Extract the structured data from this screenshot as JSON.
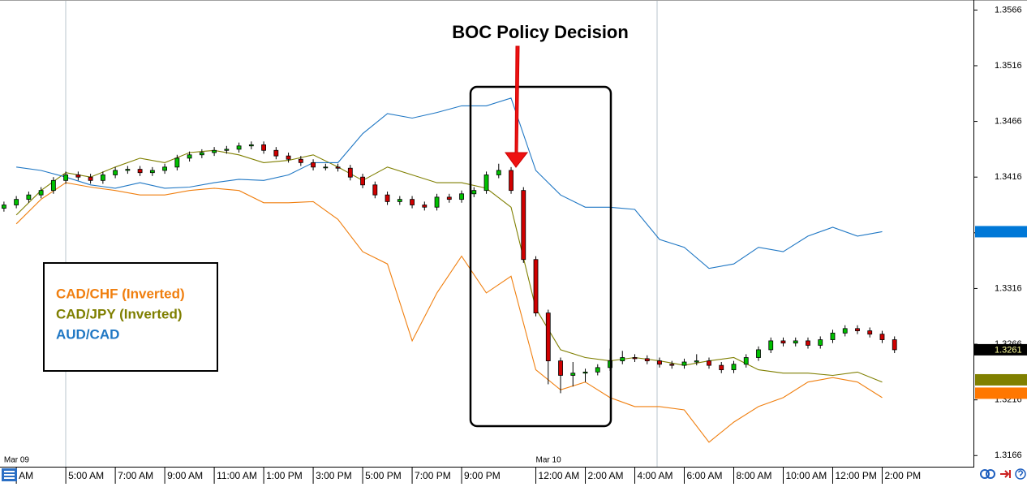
{
  "chart_data": {
    "type": "candlestick",
    "annotation": "BOC Policy Decision",
    "legend": "left",
    "up_color": "#00c000",
    "down_color": "#d00000",
    "x": [
      2.5,
      3,
      3.5,
      4,
      4.5,
      5,
      5.5,
      6,
      6.5,
      7,
      7.5,
      8,
      8.5,
      9,
      9.5,
      10,
      10.5,
      11,
      11.5,
      12,
      12.5,
      13,
      13.5,
      14,
      14.5,
      15,
      15.5,
      16,
      16.5,
      17,
      17.5,
      18,
      18.5,
      19,
      19.5,
      20,
      20.5,
      21,
      21.5,
      22,
      22.5,
      23,
      23.5,
      24,
      24.5,
      25,
      25.5,
      26,
      26.5,
      27,
      27.5,
      28,
      28.5,
      29,
      29.5,
      30,
      30.5,
      31,
      31.5,
      32,
      32.5,
      33,
      33.5,
      34,
      34.5,
      35,
      35.5,
      36,
      36.5,
      37,
      37.5,
      38,
      38.5
    ],
    "open": [
      1.3388,
      1.3391,
      1.3396,
      1.34,
      1.3404,
      1.3413,
      1.3418,
      1.3416,
      1.3413,
      1.3418,
      1.3422,
      1.3423,
      1.342,
      1.3422,
      1.3425,
      1.3433,
      1.3436,
      1.3438,
      1.344,
      1.3441,
      1.3444,
      1.3445,
      1.344,
      1.3435,
      1.3432,
      1.3429,
      1.3425,
      1.3425,
      1.3424,
      1.3416,
      1.3409,
      1.34,
      1.3394,
      1.3396,
      1.3391,
      1.3389,
      1.3398,
      1.3396,
      1.3401,
      1.3404,
      1.3418,
      1.3422,
      1.3404,
      1.3342,
      1.3294,
      1.3251,
      1.3238,
      1.324,
      1.3241,
      1.3245,
      1.3251,
      1.3254,
      1.3253,
      1.3251,
      1.3248,
      1.3247,
      1.325,
      1.3251,
      1.3247,
      1.3243,
      1.3248,
      1.3254,
      1.3261,
      1.3269,
      1.3267,
      1.3269,
      1.3265,
      1.327,
      1.3276,
      1.328,
      1.3278,
      1.3275,
      1.327
    ],
    "high": [
      1.3394,
      1.3399,
      1.3403,
      1.3407,
      1.3416,
      1.3421,
      1.3421,
      1.3419,
      1.3421,
      1.3425,
      1.3426,
      1.3426,
      1.3425,
      1.3428,
      1.3436,
      1.3439,
      1.3441,
      1.3443,
      1.3444,
      1.3447,
      1.3448,
      1.3448,
      1.3443,
      1.3438,
      1.3435,
      1.3432,
      1.3428,
      1.3428,
      1.3427,
      1.3419,
      1.3412,
      1.3403,
      1.3399,
      1.3399,
      1.3394,
      1.3401,
      1.3401,
      1.3404,
      1.3407,
      1.3421,
      1.3428,
      1.3425,
      1.3407,
      1.3345,
      1.3297,
      1.3254,
      1.325,
      1.3244,
      1.3248,
      1.3262,
      1.326,
      1.3257,
      1.3256,
      1.3254,
      1.3251,
      1.3253,
      1.3257,
      1.3254,
      1.325,
      1.3251,
      1.3257,
      1.3264,
      1.3272,
      1.3272,
      1.3272,
      1.3272,
      1.3273,
      1.3279,
      1.3283,
      1.3283,
      1.3281,
      1.3278,
      1.3273
    ],
    "low": [
      1.3385,
      1.3388,
      1.3393,
      1.3397,
      1.3401,
      1.341,
      1.3413,
      1.341,
      1.341,
      1.3415,
      1.3419,
      1.3417,
      1.3417,
      1.3419,
      1.3422,
      1.343,
      1.3433,
      1.3435,
      1.3437,
      1.3438,
      1.3441,
      1.3437,
      1.3432,
      1.3429,
      1.3426,
      1.3422,
      1.3422,
      1.3421,
      1.3413,
      1.3406,
      1.3397,
      1.3391,
      1.3391,
      1.3388,
      1.3386,
      1.3386,
      1.3393,
      1.3393,
      1.3398,
      1.3401,
      1.3415,
      1.3401,
      1.3339,
      1.3291,
      1.323,
      1.3222,
      1.3228,
      1.3232,
      1.3238,
      1.3242,
      1.3248,
      1.325,
      1.3248,
      1.3245,
      1.3244,
      1.3244,
      1.3247,
      1.3244,
      1.324,
      1.324,
      1.3245,
      1.3251,
      1.3258,
      1.3264,
      1.3264,
      1.3262,
      1.3262,
      1.3267,
      1.3273,
      1.3275,
      1.3272,
      1.3267,
      1.3258
    ],
    "close": [
      1.3391,
      1.3396,
      1.34,
      1.3404,
      1.3413,
      1.3418,
      1.3416,
      1.3413,
      1.3418,
      1.3422,
      1.3423,
      1.342,
      1.3422,
      1.3425,
      1.3433,
      1.3436,
      1.3438,
      1.344,
      1.3441,
      1.3444,
      1.3445,
      1.344,
      1.3435,
      1.3432,
      1.3429,
      1.3425,
      1.3425,
      1.3424,
      1.3416,
      1.3409,
      1.34,
      1.3394,
      1.3396,
      1.3391,
      1.3389,
      1.3398,
      1.3396,
      1.3401,
      1.3404,
      1.3418,
      1.3422,
      1.3404,
      1.3342,
      1.3294,
      1.3251,
      1.3238,
      1.324,
      1.3241,
      1.3245,
      1.3251,
      1.3254,
      1.3253,
      1.3251,
      1.3248,
      1.3247,
      1.325,
      1.3251,
      1.3247,
      1.3243,
      1.3248,
      1.3254,
      1.3261,
      1.3269,
      1.3267,
      1.3269,
      1.3265,
      1.327,
      1.3276,
      1.328,
      1.3278,
      1.3275,
      1.327,
      1.3261
    ],
    "series": [
      {
        "name": "CAD/CHF (Inverted)",
        "color": "#f07f0f",
        "x": [
          3,
          4,
          5,
          6,
          7,
          8,
          9,
          10,
          11,
          12,
          13,
          14,
          15,
          16,
          17,
          18,
          19,
          20,
          21,
          22,
          23,
          24,
          25,
          26,
          27,
          28,
          29,
          30,
          31,
          32,
          33,
          34,
          35,
          36,
          37,
          38
        ],
        "values": [
          1.3374,
          1.3396,
          1.3411,
          1.3407,
          1.3404,
          1.34,
          1.34,
          1.3404,
          1.3406,
          1.3404,
          1.3393,
          1.3393,
          1.3394,
          1.3378,
          1.3349,
          1.3338,
          1.3269,
          1.3312,
          1.3345,
          1.3312,
          1.3327,
          1.3243,
          1.3225,
          1.3232,
          1.3218,
          1.321,
          1.321,
          1.3207,
          1.3178,
          1.3196,
          1.321,
          1.3218,
          1.3232,
          1.3236,
          1.3232,
          1.3218
        ]
      },
      {
        "name": "CAD/JPY (Inverted)",
        "color": "#7f7f00",
        "x": [
          3,
          4,
          5,
          6,
          7,
          8,
          9,
          10,
          11,
          12,
          13,
          14,
          15,
          16,
          17,
          18,
          19,
          20,
          21,
          22,
          23,
          24,
          25,
          26,
          27,
          28,
          29,
          30,
          31,
          32,
          33,
          34,
          35,
          36,
          37,
          38
        ],
        "values": [
          1.3382,
          1.3404,
          1.342,
          1.3416,
          1.3425,
          1.3433,
          1.3429,
          1.3438,
          1.344,
          1.3436,
          1.3429,
          1.3431,
          1.3436,
          1.3425,
          1.3413,
          1.3425,
          1.3418,
          1.3411,
          1.3411,
          1.3406,
          1.3389,
          1.3298,
          1.3261,
          1.3254,
          1.3251,
          1.3254,
          1.3251,
          1.3247,
          1.3251,
          1.3254,
          1.3243,
          1.324,
          1.324,
          1.3238,
          1.3241,
          1.3232
        ]
      },
      {
        "name": "AUD/CAD",
        "color": "#1f77c4",
        "x": [
          3,
          4,
          5,
          6,
          7,
          8,
          9,
          10,
          11,
          12,
          13,
          14,
          15,
          16,
          17,
          18,
          19,
          20,
          21,
          22,
          23,
          24,
          25,
          26,
          27,
          28,
          29,
          30,
          31,
          32,
          33,
          34,
          35,
          36,
          37,
          38
        ],
        "values": [
          1.3425,
          1.3422,
          1.3416,
          1.3409,
          1.3406,
          1.3411,
          1.3406,
          1.3407,
          1.3411,
          1.3414,
          1.3413,
          1.3418,
          1.3429,
          1.3429,
          1.3455,
          1.3473,
          1.3469,
          1.3474,
          1.348,
          1.348,
          1.3487,
          1.3422,
          1.34,
          1.3389,
          1.3389,
          1.3387,
          1.336,
          1.3353,
          1.3334,
          1.3338,
          1.3353,
          1.3349,
          1.3363,
          1.3371,
          1.3363,
          1.3367
        ]
      }
    ],
    "xlim": [
      2.34,
      41.69
    ],
    "xticks": [
      {
        "value": 3,
        "label": "AM"
      },
      {
        "value": 5,
        "label": "5:00 AM"
      },
      {
        "value": 7,
        "label": "7:00 AM"
      },
      {
        "value": 9,
        "label": "9:00 AM"
      },
      {
        "value": 11,
        "label": "11:00 AM"
      },
      {
        "value": 13,
        "label": "1:00 PM"
      },
      {
        "value": 15,
        "label": "3:00 PM"
      },
      {
        "value": 17,
        "label": "5:00 PM"
      },
      {
        "value": 19,
        "label": "7:00 PM"
      },
      {
        "value": 21,
        "label": "9:00 PM"
      },
      {
        "value": 24,
        "label": "12:00 AM"
      },
      {
        "value": 26,
        "label": "2:00 AM"
      },
      {
        "value": 28,
        "label": "4:00 AM"
      },
      {
        "value": 30,
        "label": "6:00 AM"
      },
      {
        "value": 32,
        "label": "8:00 AM"
      },
      {
        "value": 34,
        "label": "10:00 AM"
      },
      {
        "value": 36,
        "label": "12:00 PM"
      },
      {
        "value": 38,
        "label": "2:00 PM"
      }
    ],
    "date_labels": [
      {
        "value": 2.5,
        "label": "Mar 09"
      },
      {
        "value": 24,
        "label": "Mar 10"
      }
    ],
    "ylim": [
      1.3156,
      1.3575
    ],
    "yticks": [
      1.3566,
      1.3516,
      1.3466,
      1.3416,
      1.3366,
      1.3316,
      1.3266,
      1.3216,
      1.3166
    ],
    "price_markers": [
      {
        "value": 1.3367,
        "color": "#0078d7"
      },
      {
        "value": 1.3234,
        "color": "#808000"
      },
      {
        "value": 1.3222,
        "color": "#ff7700"
      }
    ],
    "last_price": 1.3261
  }
}
